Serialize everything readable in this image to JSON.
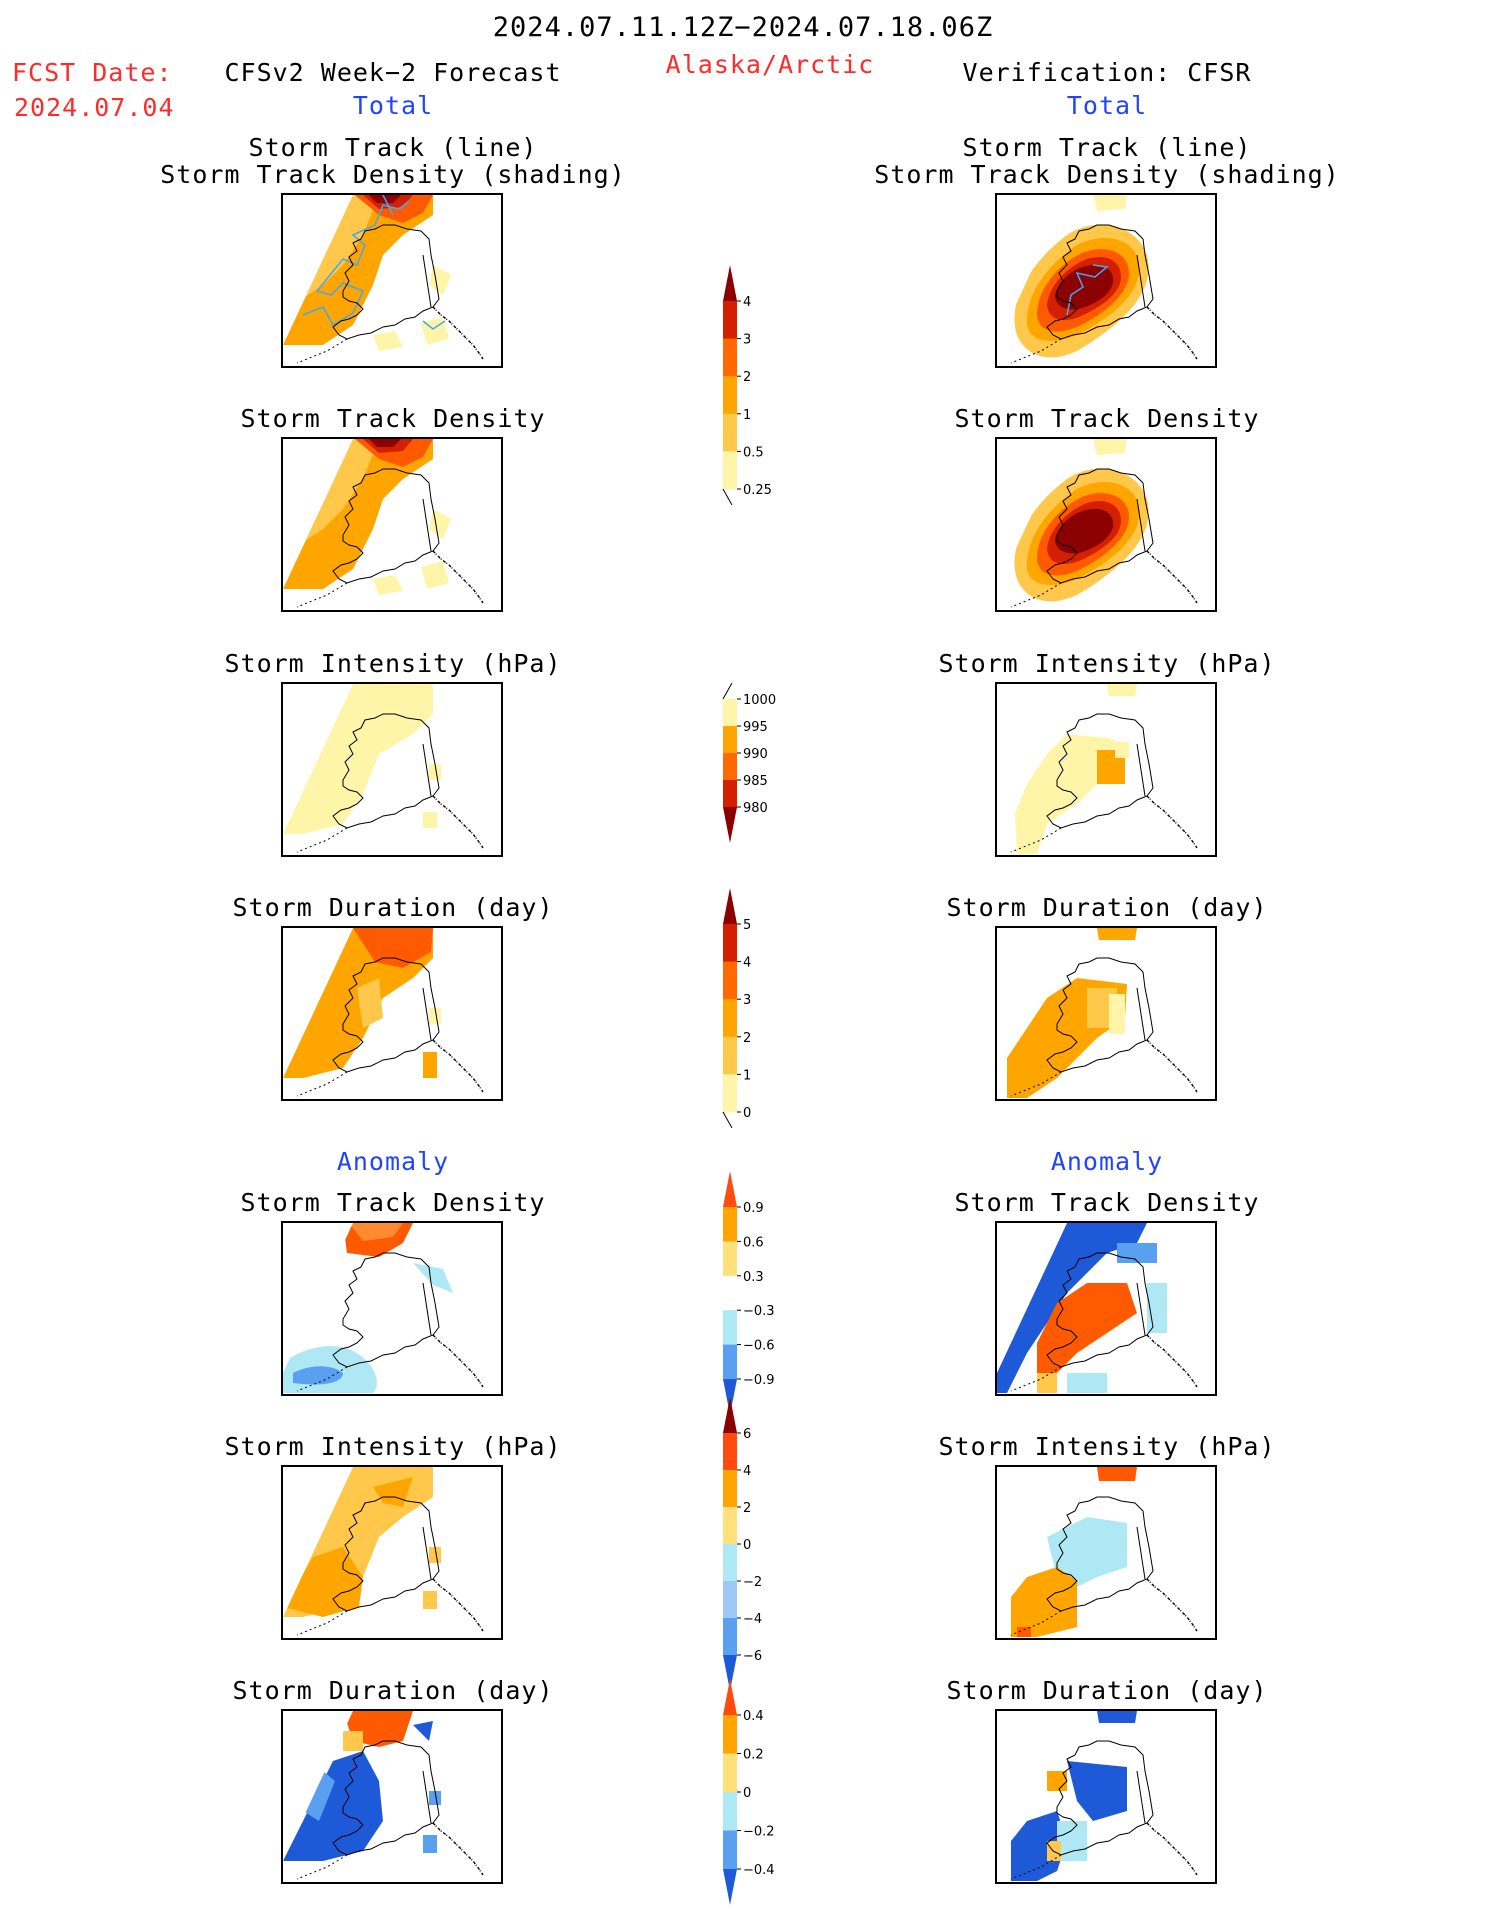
{
  "header": {
    "period": "2024.07.11.12Z−2024.07.18.06Z",
    "fcst_label": "FCST Date:",
    "fcst_date": "2024.07.04",
    "left_title": "CFSv2 Week−2 Forecast",
    "region": "Alaska/Arctic",
    "right_title": "Verification: CFSR",
    "left_sub": "Total",
    "right_sub": "Total"
  },
  "section_anomaly": {
    "left": "Anomaly",
    "right": "Anomaly"
  },
  "panel_titles": {
    "track_line": "Storm Track (line)",
    "track_shading": "Storm Track Density (shading)",
    "density": "Storm Track Density",
    "intensity": "Storm Intensity (hPa)",
    "duration": "Storm Duration (day)"
  },
  "colorbars": {
    "density_total": {
      "ticks": [
        "4",
        "3",
        "2",
        "1",
        "0.5",
        "0.25"
      ],
      "colors": [
        "#8b0000",
        "#d42000",
        "#ff6a00",
        "#ffa500",
        "#ffc84a",
        "#fff5a8"
      ]
    },
    "intensity_total": {
      "ticks": [
        "1000",
        "995",
        "990",
        "985",
        "980"
      ],
      "colors": [
        "#fff5a8",
        "#ffa500",
        "#ff6a00",
        "#d42000",
        "#8b0000"
      ]
    },
    "duration_total": {
      "ticks": [
        "5",
        "4",
        "3",
        "2",
        "1",
        "0"
      ],
      "colors": [
        "#8b0000",
        "#d42000",
        "#ff6a00",
        "#ffa500",
        "#ffc84a",
        "#fff5a8"
      ]
    },
    "density_anom": {
      "ticks": [
        "0.9",
        "0.6",
        "0.3",
        "−0.3",
        "−0.6",
        "−0.9"
      ],
      "colors": [
        "#ff4a10",
        "#ffa500",
        "#ffe07a",
        "#ffffff",
        "#aee8f5",
        "#5aa0f0",
        "#1e5ad8"
      ]
    },
    "intensity_anom": {
      "ticks": [
        "6",
        "4",
        "2",
        "0",
        "−2",
        "−4",
        "−6"
      ],
      "colors": [
        "#8b0000",
        "#ff4a10",
        "#ffa500",
        "#ffe07a",
        "#aee8f5",
        "#9cc8f5",
        "#5aa0f0",
        "#1e5ad8"
      ]
    },
    "duration_anom": {
      "ticks": [
        "0.4",
        "0.2",
        "0",
        "−0.2",
        "−0.4"
      ],
      "colors": [
        "#ff4a10",
        "#ffa500",
        "#ffe07a",
        "#aee8f5",
        "#5aa0f0",
        "#1e5ad8"
      ]
    }
  },
  "palette": {
    "deep_red": "#8b0000",
    "red": "#d42000",
    "red_orange": "#ff5a00",
    "orange": "#ffa500",
    "light_orange": "#ffc84a",
    "pale_yellow": "#fff5a8",
    "light_blue": "#aee8f5",
    "mid_blue": "#5aa0f0",
    "dark_blue": "#1e5ad8",
    "track_line": "#3fa9f5"
  }
}
